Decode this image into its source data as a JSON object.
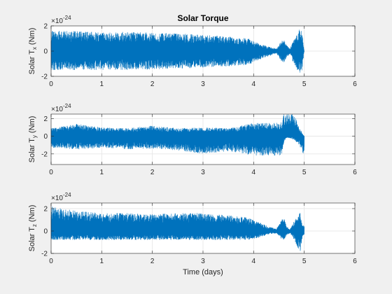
{
  "figure": {
    "title": "Solar Torque",
    "xlabel": "Time (days)"
  },
  "chart_data": [
    {
      "type": "line",
      "ylabel_prefix": "Solar T",
      "ylabel_sub": "x",
      "ylabel_suffix": " (Nm)",
      "exponent_base": "×10",
      "exponent_power": "-24",
      "xlim": [
        0,
        6
      ],
      "ylim": [
        -2,
        2
      ],
      "xticks": [
        "0",
        "1",
        "2",
        "3",
        "4",
        "5",
        "6"
      ],
      "yticks": [
        "-2",
        "0",
        "2"
      ],
      "ytick_values": [
        -2,
        0,
        2
      ],
      "grid": true,
      "series": [
        {
          "color": "#0072BD",
          "x": [
            0,
            0.5,
            1,
            1.5,
            2,
            2.5,
            3,
            3.5,
            3.9,
            4.1,
            4.3,
            4.45,
            4.55,
            4.6,
            4.65,
            4.72,
            4.78,
            4.85,
            4.9,
            4.95,
            5.0
          ],
          "upper": [
            1.6,
            1.6,
            1.5,
            1.55,
            1.45,
            1.4,
            1.3,
            1.15,
            1.0,
            0.6,
            0.35,
            0.2,
            0.8,
            0.9,
            0.5,
            0.2,
            0.8,
            1.3,
            1.7,
            1.7,
            0
          ],
          "lower": [
            -1.5,
            -1.5,
            -1.5,
            -1.5,
            -1.45,
            -1.4,
            -1.3,
            -1.2,
            -1.1,
            -0.7,
            -0.4,
            -0.2,
            -0.8,
            -1.0,
            -0.5,
            -0.2,
            -0.9,
            -1.4,
            -1.75,
            -1.75,
            0
          ]
        }
      ]
    },
    {
      "type": "line",
      "ylabel_prefix": "Solar T",
      "ylabel_sub": "y",
      "ylabel_suffix": " (Nm)",
      "exponent_base": "×10",
      "exponent_power": "-24",
      "xlim": [
        0,
        6
      ],
      "ylim": [
        -3.2,
        2.5
      ],
      "xticks": [
        "0",
        "1",
        "2",
        "3",
        "4",
        "5",
        "6"
      ],
      "yticks": [
        "-2",
        "0",
        "2"
      ],
      "ytick_values": [
        -2,
        0,
        2
      ],
      "grid": true,
      "series": [
        {
          "color": "#0072BD",
          "x": [
            0,
            0.5,
            1,
            1.5,
            2,
            2.5,
            3,
            3.5,
            4,
            4.4,
            4.55,
            4.6,
            4.65,
            4.7,
            4.8,
            4.9,
            5.0
          ],
          "upper": [
            0.9,
            1.4,
            1.0,
            0.9,
            1.2,
            0.9,
            1.0,
            0.9,
            1.5,
            1.5,
            1.6,
            2.5,
            2.5,
            2.5,
            2.5,
            1.0,
            0
          ],
          "lower": [
            -1.3,
            -1.5,
            -1.3,
            -1.5,
            -1.4,
            -1.6,
            -2.0,
            -1.7,
            -2.2,
            -2.2,
            -2.3,
            -0.6,
            -0.2,
            -0.2,
            -0.4,
            -1.0,
            -2.3
          ]
        }
      ]
    },
    {
      "type": "line",
      "ylabel_prefix": "Solar T",
      "ylabel_sub": "z",
      "ylabel_suffix": " (Nm)",
      "exponent_base": "×10",
      "exponent_power": "-24",
      "xlim": [
        0,
        6
      ],
      "ylim": [
        -2,
        2.5
      ],
      "xticks": [
        "0",
        "1",
        "2",
        "3",
        "4",
        "5",
        "6"
      ],
      "xlabel": "Time (days)",
      "yticks": [
        "-2",
        "0",
        "2"
      ],
      "ytick_values": [
        -2,
        0,
        2
      ],
      "grid": true,
      "series": [
        {
          "color": "#0072BD",
          "x": [
            0,
            0.5,
            1,
            1.5,
            2,
            2.5,
            3,
            3.5,
            3.9,
            4.1,
            4.3,
            4.45,
            4.55,
            4.6,
            4.65,
            4.72,
            4.8,
            4.87,
            4.92,
            4.96,
            5.0
          ],
          "upper": [
            2.2,
            1.8,
            1.6,
            1.6,
            1.5,
            1.6,
            1.6,
            1.4,
            1.2,
            0.8,
            0.4,
            0.2,
            1.0,
            1.3,
            0.4,
            0.2,
            0.9,
            1.4,
            1.8,
            0.5,
            0.5
          ],
          "lower": [
            -0.8,
            -0.8,
            -0.8,
            -0.8,
            -0.8,
            -0.8,
            -0.8,
            -0.8,
            -0.8,
            -0.6,
            -0.3,
            -0.2,
            -0.7,
            -0.9,
            -0.4,
            -0.2,
            -0.8,
            -1.5,
            -1.9,
            -0.6,
            -0.3
          ]
        }
      ]
    }
  ]
}
